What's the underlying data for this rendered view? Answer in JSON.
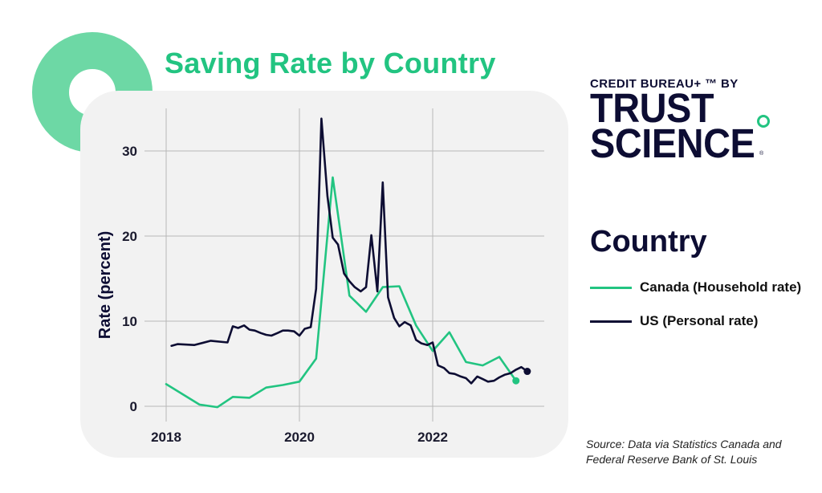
{
  "title": "Saving Rate by Country",
  "brand": {
    "top": "CREDIT BUREAU+ ™ BY",
    "line1": "TRUST",
    "line2": "SCIENCE",
    "reg": "®"
  },
  "legend": {
    "title": "Country",
    "items": [
      {
        "label": "Canada (Household rate)",
        "color": "#22c481"
      },
      {
        "label": "US (Personal rate)",
        "color": "#0d0d33"
      }
    ]
  },
  "source": {
    "line1": "Source: Data via Statistics Canada and",
    "line2": "Federal Reserve Bank of St. Louis"
  },
  "chart_data": {
    "type": "line",
    "title": "Saving Rate by Country",
    "xlabel": "",
    "ylabel": "Rate (percent)",
    "xlim": [
      2018,
      2023.65
    ],
    "ylim": [
      -0.6,
      34
    ],
    "xticks": [
      2018,
      2020,
      2022
    ],
    "yticks": [
      0,
      10,
      20,
      30
    ],
    "grid": true,
    "series": [
      {
        "name": "Canada (Household rate)",
        "color": "#22c481",
        "end_marker": true,
        "points": [
          [
            2018.0,
            2.6
          ],
          [
            2018.5,
            0.2
          ],
          [
            2018.77,
            -0.1
          ],
          [
            2019.0,
            1.1
          ],
          [
            2019.25,
            1.0
          ],
          [
            2019.5,
            2.2
          ],
          [
            2019.75,
            2.5
          ],
          [
            2020.0,
            2.9
          ],
          [
            2020.25,
            5.6
          ],
          [
            2020.5,
            26.9
          ],
          [
            2020.75,
            13.0
          ],
          [
            2021.0,
            11.1
          ],
          [
            2021.25,
            14.0
          ],
          [
            2021.5,
            14.1
          ],
          [
            2021.75,
            9.5
          ],
          [
            2022.0,
            6.5
          ],
          [
            2022.25,
            8.7
          ],
          [
            2022.5,
            5.2
          ],
          [
            2022.75,
            4.8
          ],
          [
            2023.0,
            5.8
          ],
          [
            2023.25,
            3.0
          ]
        ]
      },
      {
        "name": "US (Personal rate)",
        "color": "#0d0d33",
        "end_marker": true,
        "points": [
          [
            2018.08,
            7.1
          ],
          [
            2018.17,
            7.3
          ],
          [
            2018.42,
            7.2
          ],
          [
            2018.67,
            7.7
          ],
          [
            2018.92,
            7.5
          ],
          [
            2019.0,
            9.4
          ],
          [
            2019.08,
            9.2
          ],
          [
            2019.17,
            9.5
          ],
          [
            2019.25,
            9.0
          ],
          [
            2019.33,
            8.9
          ],
          [
            2019.42,
            8.6
          ],
          [
            2019.5,
            8.4
          ],
          [
            2019.58,
            8.3
          ],
          [
            2019.67,
            8.6
          ],
          [
            2019.75,
            8.9
          ],
          [
            2019.83,
            8.9
          ],
          [
            2019.92,
            8.8
          ],
          [
            2020.0,
            8.3
          ],
          [
            2020.08,
            9.1
          ],
          [
            2020.17,
            9.3
          ],
          [
            2020.25,
            13.8
          ],
          [
            2020.33,
            33.8
          ],
          [
            2020.42,
            24.7
          ],
          [
            2020.5,
            19.8
          ],
          [
            2020.58,
            19.0
          ],
          [
            2020.67,
            15.6
          ],
          [
            2020.75,
            14.7
          ],
          [
            2020.83,
            14.0
          ],
          [
            2020.92,
            13.5
          ],
          [
            2021.0,
            14.0
          ],
          [
            2021.08,
            20.1
          ],
          [
            2021.17,
            13.5
          ],
          [
            2021.25,
            26.3
          ],
          [
            2021.33,
            12.8
          ],
          [
            2021.42,
            10.4
          ],
          [
            2021.5,
            9.4
          ],
          [
            2021.58,
            9.9
          ],
          [
            2021.67,
            9.5
          ],
          [
            2021.75,
            7.8
          ],
          [
            2021.83,
            7.4
          ],
          [
            2021.92,
            7.2
          ],
          [
            2022.0,
            7.5
          ],
          [
            2022.08,
            4.8
          ],
          [
            2022.17,
            4.5
          ],
          [
            2022.25,
            3.9
          ],
          [
            2022.33,
            3.8
          ],
          [
            2022.42,
            3.5
          ],
          [
            2022.5,
            3.3
          ],
          [
            2022.58,
            2.7
          ],
          [
            2022.67,
            3.5
          ],
          [
            2022.75,
            3.2
          ],
          [
            2022.83,
            2.9
          ],
          [
            2022.92,
            3.0
          ],
          [
            2023.0,
            3.4
          ],
          [
            2023.08,
            3.7
          ],
          [
            2023.17,
            3.9
          ],
          [
            2023.25,
            4.3
          ],
          [
            2023.33,
            4.6
          ],
          [
            2023.42,
            4.1
          ]
        ]
      }
    ]
  }
}
